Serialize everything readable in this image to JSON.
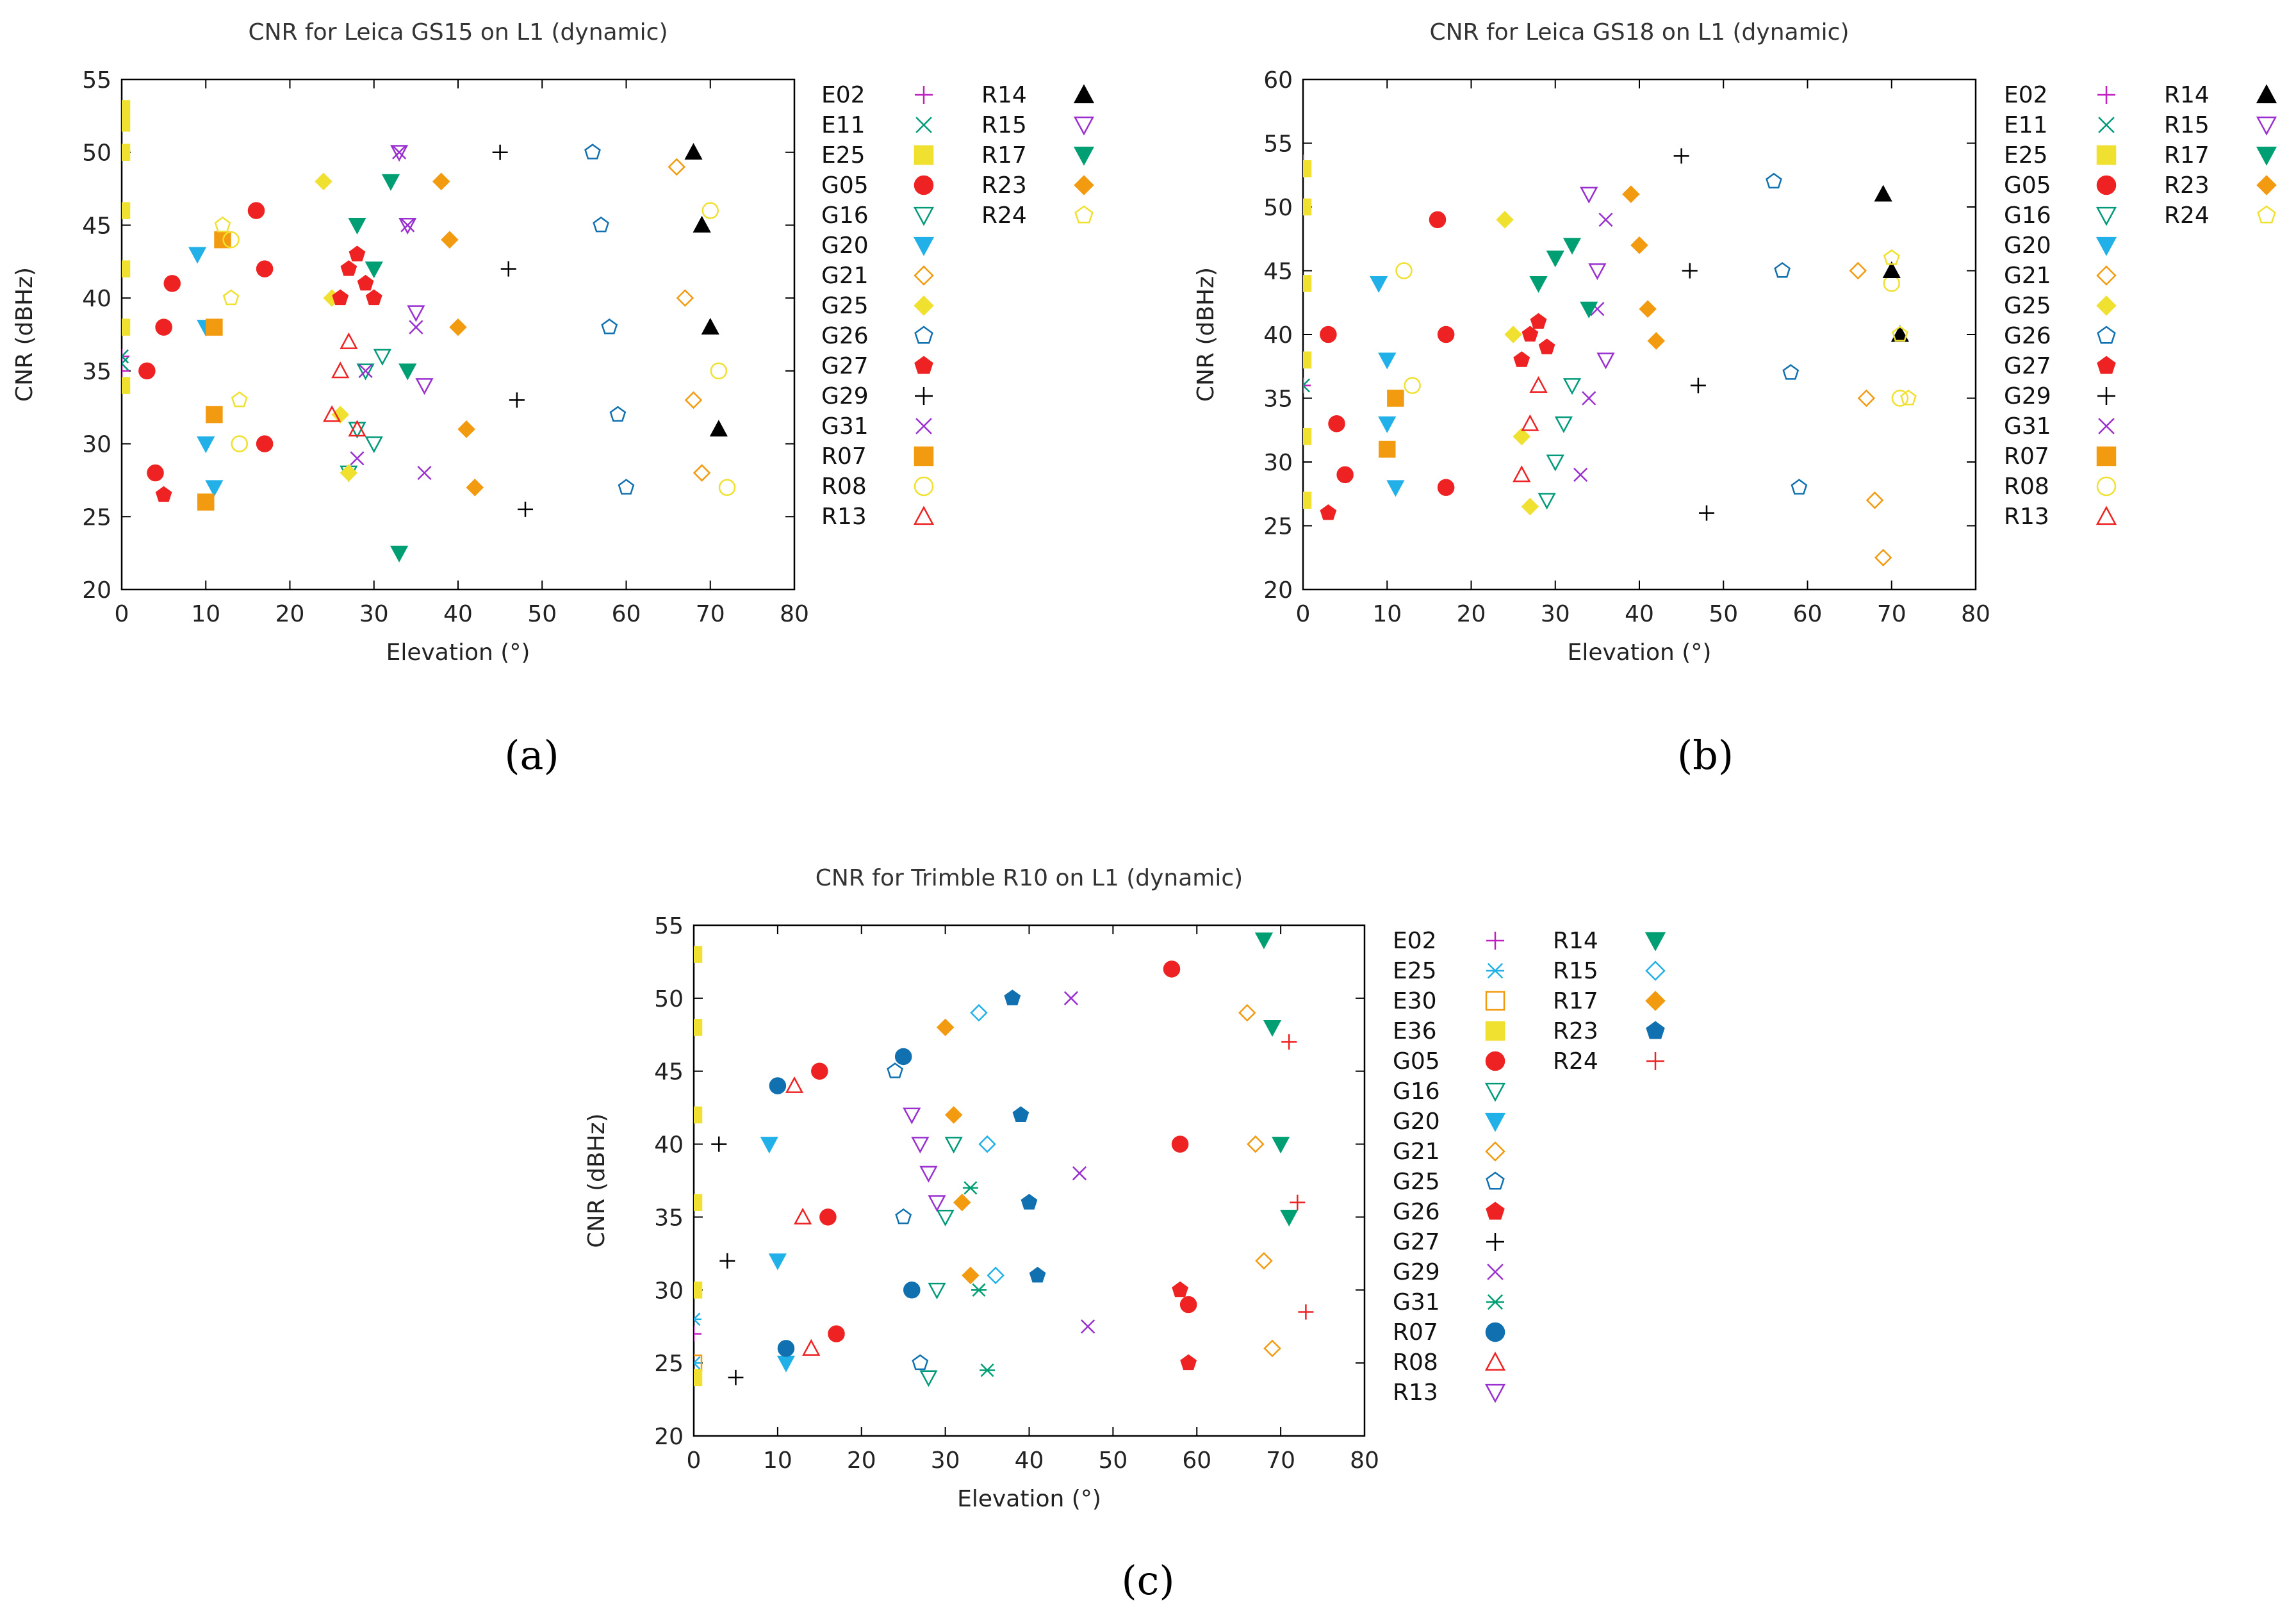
{
  "figure": {
    "panel_labels": [
      "(a)",
      "(b)",
      "(c)"
    ]
  },
  "colors": {
    "magenta": "#c020c0",
    "teal": "#009a7a",
    "yellow": "#f0e030",
    "red": "#ee2222",
    "cyan": "#22b0e8",
    "orange": "#f29a10",
    "blue": "#1070b0",
    "black": "#000000",
    "purple": "#9a30d0",
    "green": "#009e73"
  },
  "chart_data": [
    {
      "type": "scatter",
      "panel": "(a)",
      "title": "CNR for Leica GS15 on L1 (dynamic)",
      "xlabel": "Elevation (°)",
      "ylabel": "CNR (dBHz)",
      "xlim": [
        0,
        80
      ],
      "ylim": [
        20,
        55
      ],
      "xticks": [
        "0",
        "10",
        "20",
        "30",
        "40",
        "50",
        "60",
        "70",
        "80"
      ],
      "yticks": [
        "20",
        "25",
        "30",
        "35",
        "40",
        "45",
        "50",
        "55"
      ],
      "series": [
        {
          "name": "E02",
          "marker": "plus",
          "color": "#c020c0",
          "x": [
            0,
            0
          ],
          "y": [
            35,
            36
          ]
        },
        {
          "name": "E11",
          "marker": "x",
          "color": "#009a7a",
          "x": [
            0,
            0
          ],
          "y": [
            35.5,
            36
          ]
        },
        {
          "name": "E25",
          "marker": "square-filled",
          "color": "#f0e030",
          "x": [
            0,
            0,
            0,
            0,
            0,
            0,
            0
          ],
          "y": [
            34,
            38,
            42,
            46,
            50,
            52,
            53
          ]
        },
        {
          "name": "G05",
          "marker": "circle-filled",
          "color": "#ee2222",
          "x": [
            3,
            4,
            5,
            6,
            16,
            17,
            17
          ],
          "y": [
            35,
            28,
            38,
            41,
            46,
            30,
            42
          ]
        },
        {
          "name": "G16",
          "marker": "triangle-down-open",
          "color": "#009a7a",
          "x": [
            27,
            28,
            29,
            30,
            31
          ],
          "y": [
            28,
            31,
            35,
            30,
            36
          ]
        },
        {
          "name": "G20",
          "marker": "triangle-down-filled",
          "color": "#22b0e8",
          "x": [
            9,
            10,
            10,
            11
          ],
          "y": [
            43,
            38,
            30,
            27
          ]
        },
        {
          "name": "G21",
          "marker": "diamond-open",
          "color": "#f29a10",
          "x": [
            66,
            67,
            68,
            69
          ],
          "y": [
            49,
            40,
            33,
            28
          ]
        },
        {
          "name": "G25",
          "marker": "diamond-filled",
          "color": "#f0e030",
          "x": [
            24,
            25,
            26,
            27
          ],
          "y": [
            48,
            40,
            32,
            28
          ]
        },
        {
          "name": "G26",
          "marker": "pentagon-open",
          "color": "#1070b0",
          "x": [
            56,
            57,
            58,
            59,
            60
          ],
          "y": [
            50,
            45,
            38,
            32,
            27
          ]
        },
        {
          "name": "G27",
          "marker": "pentagon-filled",
          "color": "#ee2222",
          "x": [
            5,
            26,
            27,
            28,
            29,
            30
          ],
          "y": [
            26.5,
            40,
            42,
            43,
            41,
            40
          ]
        },
        {
          "name": "G29",
          "marker": "plus",
          "color": "#000000",
          "x": [
            45,
            46,
            47,
            48
          ],
          "y": [
            50,
            42,
            33,
            25.5
          ]
        },
        {
          "name": "G31",
          "marker": "x",
          "color": "#9a30d0",
          "x": [
            28,
            29,
            33,
            34,
            35,
            36
          ],
          "y": [
            29,
            35,
            50,
            45,
            38,
            28
          ]
        },
        {
          "name": "R07",
          "marker": "square-filled",
          "color": "#f29a10",
          "x": [
            10,
            11,
            11,
            12
          ],
          "y": [
            26,
            32,
            38,
            44
          ]
        },
        {
          "name": "R08",
          "marker": "circle-open",
          "color": "#f0e030",
          "x": [
            13,
            14,
            70,
            71,
            72
          ],
          "y": [
            44,
            30,
            46,
            35,
            27
          ]
        },
        {
          "name": "R13",
          "marker": "triangle-up-open",
          "color": "#ee2222",
          "x": [
            25,
            26,
            27,
            28
          ],
          "y": [
            32,
            35,
            37,
            31
          ]
        },
        {
          "name": "R14",
          "marker": "triangle-up-filled",
          "color": "#000000",
          "x": [
            68,
            69,
            70,
            71
          ],
          "y": [
            50,
            45,
            38,
            31
          ]
        },
        {
          "name": "R15",
          "marker": "triangle-down-open",
          "color": "#9a30d0",
          "x": [
            33,
            34,
            35,
            36
          ],
          "y": [
            50,
            45,
            39,
            34
          ]
        },
        {
          "name": "R17",
          "marker": "triangle-down-filled",
          "color": "#009e73",
          "x": [
            28,
            30,
            32,
            33,
            34
          ],
          "y": [
            45,
            42,
            48,
            22.5,
            35
          ]
        },
        {
          "name": "R23",
          "marker": "diamond-filled",
          "color": "#f29a10",
          "x": [
            38,
            39,
            40,
            41,
            42
          ],
          "y": [
            48,
            44,
            38,
            31,
            27
          ]
        },
        {
          "name": "R24",
          "marker": "pentagon-open",
          "color": "#f0e030",
          "x": [
            12,
            13,
            14
          ],
          "y": [
            45,
            40,
            33
          ]
        }
      ]
    },
    {
      "type": "scatter",
      "panel": "(b)",
      "title": "CNR for Leica GS18 on L1 (dynamic)",
      "xlabel": "Elevation (°)",
      "ylabel": "CNR (dBHz)",
      "xlim": [
        0,
        80
      ],
      "ylim": [
        20,
        60
      ],
      "xticks": [
        "0",
        "10",
        "20",
        "30",
        "40",
        "50",
        "60",
        "70",
        "80"
      ],
      "yticks": [
        "20",
        "25",
        "30",
        "35",
        "40",
        "45",
        "50",
        "55",
        "60"
      ],
      "series": [
        {
          "name": "E02",
          "marker": "plus",
          "color": "#c020c0",
          "x": [
            0,
            0
          ],
          "y": [
            53.5,
            36
          ]
        },
        {
          "name": "E11",
          "marker": "x",
          "color": "#009a7a",
          "x": [
            0
          ],
          "y": [
            36
          ]
        },
        {
          "name": "E25",
          "marker": "square-filled",
          "color": "#f0e030",
          "x": [
            0,
            0,
            0,
            0,
            0,
            0
          ],
          "y": [
            27,
            32,
            38,
            44,
            50,
            53
          ]
        },
        {
          "name": "G05",
          "marker": "circle-filled",
          "color": "#ee2222",
          "x": [
            3,
            4,
            5,
            16,
            17,
            17
          ],
          "y": [
            40,
            33,
            29,
            49,
            40,
            28
          ]
        },
        {
          "name": "G16",
          "marker": "triangle-down-open",
          "color": "#009a7a",
          "x": [
            29,
            30,
            31,
            32
          ],
          "y": [
            27,
            30,
            33,
            36
          ]
        },
        {
          "name": "G20",
          "marker": "triangle-down-filled",
          "color": "#22b0e8",
          "x": [
            9,
            10,
            10,
            11
          ],
          "y": [
            44,
            38,
            33,
            28
          ]
        },
        {
          "name": "G21",
          "marker": "diamond-open",
          "color": "#f29a10",
          "x": [
            66,
            67,
            68,
            69
          ],
          "y": [
            45,
            35,
            27,
            22.5
          ]
        },
        {
          "name": "G25",
          "marker": "diamond-filled",
          "color": "#f0e030",
          "x": [
            24,
            25,
            26,
            27
          ],
          "y": [
            49,
            40,
            32,
            26.5
          ]
        },
        {
          "name": "G26",
          "marker": "pentagon-open",
          "color": "#1070b0",
          "x": [
            56,
            57,
            58,
            59
          ],
          "y": [
            52,
            45,
            37,
            28
          ]
        },
        {
          "name": "G27",
          "marker": "pentagon-filled",
          "color": "#ee2222",
          "x": [
            3,
            26,
            27,
            28,
            29
          ],
          "y": [
            26,
            38,
            40,
            41,
            39
          ]
        },
        {
          "name": "G29",
          "marker": "plus",
          "color": "#000000",
          "x": [
            45,
            46,
            47,
            48
          ],
          "y": [
            54,
            45,
            36,
            26
          ]
        },
        {
          "name": "G31",
          "marker": "x",
          "color": "#9a30d0",
          "x": [
            33,
            34,
            35,
            36
          ],
          "y": [
            29,
            35,
            42,
            49
          ]
        },
        {
          "name": "R07",
          "marker": "square-filled",
          "color": "#f29a10",
          "x": [
            10,
            11
          ],
          "y": [
            31,
            35
          ]
        },
        {
          "name": "R08",
          "marker": "circle-open",
          "color": "#f0e030",
          "x": [
            12,
            13,
            70,
            71
          ],
          "y": [
            45,
            36,
            44,
            35
          ]
        },
        {
          "name": "R13",
          "marker": "triangle-up-open",
          "color": "#ee2222",
          "x": [
            26,
            27,
            28
          ],
          "y": [
            29,
            33,
            36
          ]
        },
        {
          "name": "R14",
          "marker": "triangle-up-filled",
          "color": "#000000",
          "x": [
            69,
            70,
            71
          ],
          "y": [
            51,
            45,
            40
          ]
        },
        {
          "name": "R15",
          "marker": "triangle-down-open",
          "color": "#9a30d0",
          "x": [
            34,
            35,
            36
          ],
          "y": [
            51,
            45,
            38
          ]
        },
        {
          "name": "R17",
          "marker": "triangle-down-filled",
          "color": "#009e73",
          "x": [
            28,
            30,
            32,
            34
          ],
          "y": [
            44,
            46,
            47,
            42
          ]
        },
        {
          "name": "R23",
          "marker": "diamond-filled",
          "color": "#f29a10",
          "x": [
            39,
            40,
            41,
            42
          ],
          "y": [
            51,
            47,
            42,
            39.5
          ]
        },
        {
          "name": "R24",
          "marker": "pentagon-open",
          "color": "#f0e030",
          "x": [
            70,
            71,
            72
          ],
          "y": [
            46,
            40,
            35
          ]
        }
      ]
    },
    {
      "type": "scatter",
      "panel": "(c)",
      "title": "CNR for Trimble R10 on L1 (dynamic)",
      "xlabel": "Elevation (°)",
      "ylabel": "CNR (dBHz)",
      "xlim": [
        0,
        80
      ],
      "ylim": [
        20,
        55
      ],
      "xticks": [
        "0",
        "10",
        "20",
        "30",
        "40",
        "50",
        "60",
        "70",
        "80"
      ],
      "yticks": [
        "20",
        "25",
        "30",
        "35",
        "40",
        "45",
        "50",
        "55"
      ],
      "series": [
        {
          "name": "E02",
          "marker": "plus",
          "color": "#c020c0",
          "x": [
            0
          ],
          "y": [
            27
          ]
        },
        {
          "name": "E25",
          "marker": "asterisk",
          "color": "#22b0e8",
          "x": [
            0,
            0
          ],
          "y": [
            25,
            28
          ]
        },
        {
          "name": "E30",
          "marker": "square-open",
          "color": "#f29a10",
          "x": [
            0
          ],
          "y": [
            25
          ]
        },
        {
          "name": "E36",
          "marker": "square-filled",
          "color": "#f0e030",
          "x": [
            0,
            0,
            0,
            0,
            0,
            0
          ],
          "y": [
            24,
            30,
            36,
            42,
            48,
            53
          ]
        },
        {
          "name": "G05",
          "marker": "circle-filled",
          "color": "#ee2222",
          "x": [
            15,
            16,
            17,
            57,
            58,
            59
          ],
          "y": [
            45,
            35,
            27,
            52,
            40,
            29
          ]
        },
        {
          "name": "G16",
          "marker": "triangle-down-open",
          "color": "#009a7a",
          "x": [
            28,
            29,
            30,
            31
          ],
          "y": [
            24,
            30,
            35,
            40
          ]
        },
        {
          "name": "G20",
          "marker": "triangle-down-filled",
          "color": "#22b0e8",
          "x": [
            9,
            10,
            11
          ],
          "y": [
            40,
            32,
            25
          ]
        },
        {
          "name": "G21",
          "marker": "diamond-open",
          "color": "#f29a10",
          "x": [
            66,
            67,
            68,
            69
          ],
          "y": [
            49,
            40,
            32,
            26
          ]
        },
        {
          "name": "G25",
          "marker": "pentagon-open",
          "color": "#1070b0",
          "x": [
            24,
            25,
            26,
            27
          ],
          "y": [
            45,
            35,
            30,
            25
          ]
        },
        {
          "name": "G26",
          "marker": "pentagon-filled",
          "color": "#ee2222",
          "x": [
            58,
            59
          ],
          "y": [
            30,
            25
          ]
        },
        {
          "name": "G27",
          "marker": "plus",
          "color": "#000000",
          "x": [
            3,
            4,
            5
          ],
          "y": [
            40,
            32,
            24
          ]
        },
        {
          "name": "G29",
          "marker": "x",
          "color": "#9a30d0",
          "x": [
            45,
            46,
            47
          ],
          "y": [
            50,
            38,
            27.5
          ]
        },
        {
          "name": "G31",
          "marker": "asterisk",
          "color": "#009e73",
          "x": [
            33,
            34,
            35
          ],
          "y": [
            37,
            30,
            24.5
          ]
        },
        {
          "name": "R07",
          "marker": "circle-filled",
          "color": "#1070b0",
          "x": [
            10,
            11,
            25,
            26
          ],
          "y": [
            44,
            26,
            46,
            30
          ]
        },
        {
          "name": "R08",
          "marker": "triangle-up-open",
          "color": "#ee2222",
          "x": [
            12,
            13,
            14
          ],
          "y": [
            44,
            35,
            26
          ]
        },
        {
          "name": "R13",
          "marker": "triangle-down-open",
          "color": "#9a30d0",
          "x": [
            26,
            27,
            28,
            29
          ],
          "y": [
            42,
            40,
            38,
            36
          ]
        },
        {
          "name": "R14",
          "marker": "triangle-down-filled",
          "color": "#009e73",
          "x": [
            68,
            69,
            70,
            71
          ],
          "y": [
            54,
            48,
            40,
            35
          ]
        },
        {
          "name": "R15",
          "marker": "diamond-open",
          "color": "#22b0e8",
          "x": [
            34,
            35,
            36
          ],
          "y": [
            49,
            40,
            31
          ]
        },
        {
          "name": "R17",
          "marker": "diamond-filled",
          "color": "#f29a10",
          "x": [
            30,
            31,
            32,
            33
          ],
          "y": [
            48,
            42,
            36,
            31
          ]
        },
        {
          "name": "R23",
          "marker": "pentagon-filled",
          "color": "#1070b0",
          "x": [
            38,
            39,
            40,
            41
          ],
          "y": [
            50,
            42,
            36,
            31
          ]
        },
        {
          "name": "R24",
          "marker": "plus",
          "color": "#ee2222",
          "x": [
            71,
            72,
            73
          ],
          "y": [
            47,
            36,
            28.5
          ]
        }
      ]
    }
  ]
}
